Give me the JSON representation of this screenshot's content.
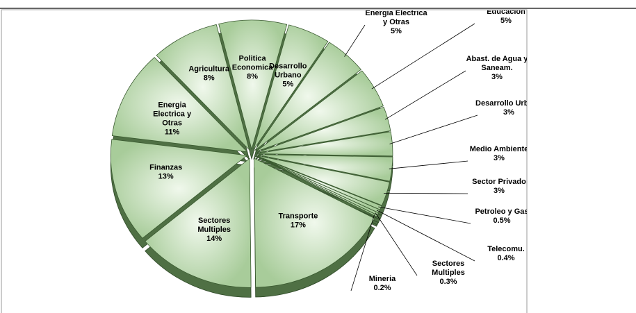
{
  "chart_data": {
    "type": "pie",
    "categories": [
      "Politica Economica",
      "Desarrollo Urbano",
      "Energia Electrica y Otras",
      "Educación",
      "Abast. de Agua y Saneam.",
      "Desarrollo Urbano",
      "Medio Ambiente",
      "Sector Privado",
      "Petroleo y Gas",
      "Telecomu.",
      "Sectores Multiples",
      "Mineria",
      "Transporte",
      "Sectores Multiples",
      "Finanzas",
      "Energia Electrica y Otras",
      "Agricultura"
    ],
    "values": [
      8,
      5,
      5,
      5,
      3,
      3,
      3,
      3,
      0.5,
      0.4,
      0.3,
      0.2,
      17,
      14,
      13,
      11,
      8
    ],
    "value_labels": [
      "8%",
      "5%",
      "5%",
      "5%",
      "3%",
      "3%",
      "3%",
      "3%",
      "0.5%",
      "0.4%",
      "0.3%",
      "0.2%",
      "17%",
      "14%",
      "13%",
      "11%",
      "8%"
    ],
    "color": "#c4e0b8"
  }
}
